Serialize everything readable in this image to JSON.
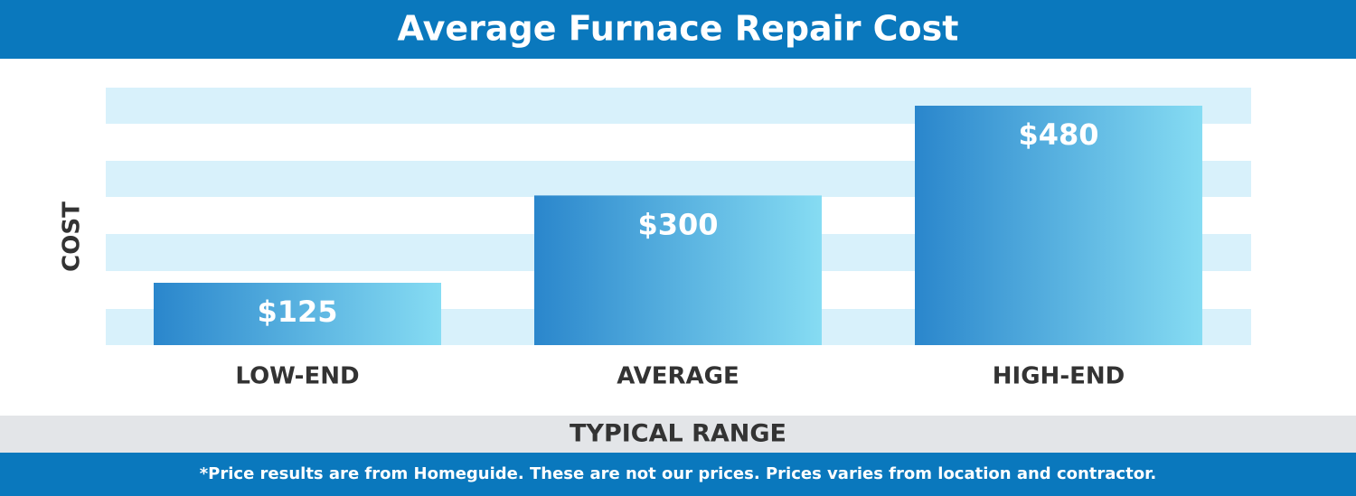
{
  "chart_data": {
    "type": "bar",
    "title": "Average Furnace Repair Cost",
    "y_label": "COST",
    "x_label": "TYPICAL RANGE",
    "footnote": "*Price results are from Homeguide. These are not our prices. Prices varies from location and contractor.",
    "categories": [
      "LOW-END",
      "AVERAGE",
      "HIGH-END"
    ],
    "values": [
      125,
      300,
      480
    ],
    "value_labels": [
      "$125",
      "$300",
      "$480"
    ],
    "color": "#2a86cc"
  }
}
